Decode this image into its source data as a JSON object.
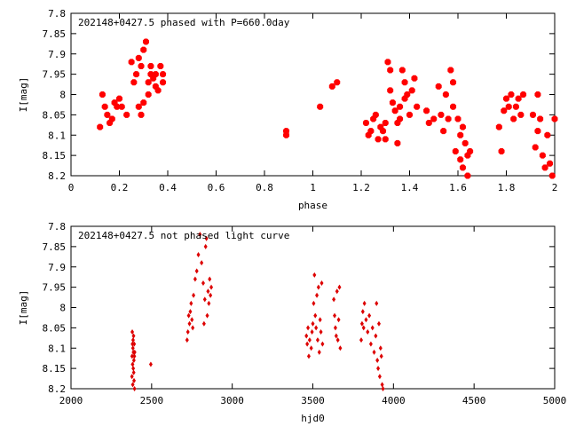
{
  "chart_data": [
    {
      "type": "scatter",
      "title": "202148+0427.5 phased with P=660.0day",
      "xlabel": "phase",
      "ylabel": "I[mag]",
      "xlim": [
        0,
        2
      ],
      "ylim": [
        8.2,
        7.8
      ],
      "y_inverted": true,
      "xticks": [
        "0",
        "0.2",
        "0.4",
        "0.6",
        "0.8",
        "1",
        "1.2",
        "1.4",
        "1.6",
        "1.8",
        "2"
      ],
      "yticks": [
        "7.8",
        "7.85",
        "7.9",
        "7.95",
        "8",
        "8.05",
        "8.1",
        "8.15",
        "8.2"
      ],
      "grid": false,
      "marker_color": "#ff0000",
      "points": [
        [
          0.12,
          8.08
        ],
        [
          0.13,
          8.0
        ],
        [
          0.14,
          8.03
        ],
        [
          0.15,
          8.05
        ],
        [
          0.16,
          8.07
        ],
        [
          0.17,
          8.06
        ],
        [
          0.18,
          8.02
        ],
        [
          0.19,
          8.03
        ],
        [
          0.2,
          8.01
        ],
        [
          0.21,
          8.03
        ],
        [
          0.23,
          8.05
        ],
        [
          0.25,
          7.92
        ],
        [
          0.26,
          7.97
        ],
        [
          0.27,
          7.95
        ],
        [
          0.28,
          7.91
        ],
        [
          0.29,
          7.93
        ],
        [
          0.28,
          8.03
        ],
        [
          0.29,
          8.05
        ],
        [
          0.3,
          7.89
        ],
        [
          0.3,
          8.02
        ],
        [
          0.31,
          7.87
        ],
        [
          0.32,
          8.0
        ],
        [
          0.32,
          7.97
        ],
        [
          0.33,
          7.95
        ],
        [
          0.33,
          7.93
        ],
        [
          0.34,
          7.96
        ],
        [
          0.35,
          7.98
        ],
        [
          0.35,
          7.95
        ],
        [
          0.36,
          7.99
        ],
        [
          0.37,
          7.93
        ],
        [
          0.38,
          7.97
        ],
        [
          0.38,
          7.95
        ],
        [
          0.89,
          8.1
        ],
        [
          0.89,
          8.09
        ],
        [
          1.03,
          8.03
        ],
        [
          1.08,
          7.98
        ],
        [
          1.1,
          7.97
        ],
        [
          1.22,
          8.07
        ],
        [
          1.23,
          8.1
        ],
        [
          1.24,
          8.09
        ],
        [
          1.25,
          8.06
        ],
        [
          1.26,
          8.05
        ],
        [
          1.27,
          8.11
        ],
        [
          1.28,
          8.08
        ],
        [
          1.29,
          8.09
        ],
        [
          1.3,
          8.07
        ],
        [
          1.3,
          8.11
        ],
        [
          1.31,
          7.92
        ],
        [
          1.32,
          7.99
        ],
        [
          1.32,
          7.94
        ],
        [
          1.33,
          8.02
        ],
        [
          1.34,
          8.04
        ],
        [
          1.35,
          8.07
        ],
        [
          1.35,
          8.12
        ],
        [
          1.36,
          8.06
        ],
        [
          1.36,
          8.03
        ],
        [
          1.37,
          7.94
        ],
        [
          1.38,
          7.97
        ],
        [
          1.38,
          8.01
        ],
        [
          1.39,
          8.0
        ],
        [
          1.4,
          8.05
        ],
        [
          1.41,
          7.99
        ],
        [
          1.42,
          7.96
        ],
        [
          1.43,
          8.03
        ],
        [
          1.47,
          8.04
        ],
        [
          1.48,
          8.07
        ],
        [
          1.5,
          8.06
        ],
        [
          1.52,
          7.98
        ],
        [
          1.53,
          8.05
        ],
        [
          1.54,
          8.09
        ],
        [
          1.55,
          8.0
        ],
        [
          1.56,
          8.06
        ],
        [
          1.57,
          7.94
        ],
        [
          1.58,
          7.97
        ],
        [
          1.58,
          8.03
        ],
        [
          1.59,
          8.14
        ],
        [
          1.6,
          8.06
        ],
        [
          1.61,
          8.1
        ],
        [
          1.61,
          8.16
        ],
        [
          1.62,
          8.18
        ],
        [
          1.62,
          8.08
        ],
        [
          1.63,
          8.12
        ],
        [
          1.64,
          8.15
        ],
        [
          1.64,
          8.2
        ],
        [
          1.65,
          8.14
        ],
        [
          1.77,
          8.08
        ],
        [
          1.78,
          8.14
        ],
        [
          1.79,
          8.04
        ],
        [
          1.8,
          8.01
        ],
        [
          1.81,
          8.03
        ],
        [
          1.82,
          8.0
        ],
        [
          1.83,
          8.06
        ],
        [
          1.84,
          8.03
        ],
        [
          1.85,
          8.01
        ],
        [
          1.86,
          8.05
        ],
        [
          1.87,
          8.0
        ],
        [
          1.91,
          8.05
        ],
        [
          1.92,
          8.13
        ],
        [
          1.93,
          8.09
        ],
        [
          1.93,
          8.0
        ],
        [
          1.94,
          8.06
        ],
        [
          1.95,
          8.15
        ],
        [
          1.96,
          8.18
        ],
        [
          1.97,
          8.1
        ],
        [
          1.98,
          8.17
        ],
        [
          1.99,
          8.2
        ],
        [
          2.0,
          8.06
        ]
      ]
    },
    {
      "type": "scatter",
      "title": "202148+0427.5 not phased light curve",
      "xlabel": "hjd0",
      "ylabel": "I[mag]",
      "xlim": [
        2000,
        5000
      ],
      "ylim": [
        8.2,
        7.8
      ],
      "y_inverted": true,
      "xticks": [
        "2000",
        "2500",
        "3000",
        "3500",
        "4000",
        "4500",
        "5000"
      ],
      "yticks": [
        "7.8",
        "7.85",
        "7.9",
        "7.95",
        "8",
        "8.05",
        "8.1",
        "8.15",
        "8.2"
      ],
      "grid": false,
      "marker_color": "#dd0000",
      "points": [
        [
          2378,
          8.17
        ],
        [
          2379,
          8.12
        ],
        [
          2380,
          8.06
        ],
        [
          2381,
          8.09
        ],
        [
          2382,
          8.14
        ],
        [
          2383,
          8.19
        ],
        [
          2384,
          8.1
        ],
        [
          2385,
          8.08
        ],
        [
          2386,
          8.15
        ],
        [
          2387,
          8.11
        ],
        [
          2388,
          8.07
        ],
        [
          2389,
          8.16
        ],
        [
          2390,
          8.13
        ],
        [
          2391,
          8.18
        ],
        [
          2392,
          8.09
        ],
        [
          2393,
          8.12
        ],
        [
          2394,
          8.2
        ],
        [
          2395,
          8.11
        ],
        [
          2495,
          8.14
        ],
        [
          2720,
          8.08
        ],
        [
          2725,
          8.06
        ],
        [
          2730,
          8.02
        ],
        [
          2735,
          8.04
        ],
        [
          2740,
          8.01
        ],
        [
          2745,
          7.99
        ],
        [
          2750,
          8.03
        ],
        [
          2755,
          8.05
        ],
        [
          2760,
          7.97
        ],
        [
          2770,
          7.93
        ],
        [
          2780,
          7.91
        ],
        [
          2790,
          7.87
        ],
        [
          2800,
          7.82
        ],
        [
          2810,
          7.89
        ],
        [
          2820,
          7.94
        ],
        [
          2825,
          8.04
        ],
        [
          2830,
          7.98
        ],
        [
          2835,
          7.85
        ],
        [
          2840,
          7.83
        ],
        [
          2845,
          8.02
        ],
        [
          2850,
          7.96
        ],
        [
          2855,
          7.99
        ],
        [
          2860,
          7.93
        ],
        [
          2865,
          7.97
        ],
        [
          2870,
          7.95
        ],
        [
          3460,
          8.07
        ],
        [
          3465,
          8.09
        ],
        [
          3470,
          8.05
        ],
        [
          3475,
          8.12
        ],
        [
          3480,
          8.08
        ],
        [
          3490,
          8.1
        ],
        [
          3495,
          8.06
        ],
        [
          3500,
          8.04
        ],
        [
          3505,
          7.99
        ],
        [
          3510,
          7.92
        ],
        [
          3515,
          8.02
        ],
        [
          3520,
          8.05
        ],
        [
          3525,
          7.97
        ],
        [
          3530,
          8.08
        ],
        [
          3535,
          7.95
        ],
        [
          3540,
          8.11
        ],
        [
          3545,
          8.03
        ],
        [
          3550,
          8.06
        ],
        [
          3555,
          7.94
        ],
        [
          3560,
          8.09
        ],
        [
          3630,
          7.98
        ],
        [
          3635,
          8.02
        ],
        [
          3640,
          8.05
        ],
        [
          3645,
          8.07
        ],
        [
          3650,
          7.96
        ],
        [
          3655,
          8.08
        ],
        [
          3660,
          8.03
        ],
        [
          3665,
          7.95
        ],
        [
          3670,
          8.1
        ],
        [
          3800,
          8.08
        ],
        [
          3805,
          8.04
        ],
        [
          3810,
          8.01
        ],
        [
          3815,
          8.05
        ],
        [
          3820,
          7.99
        ],
        [
          3830,
          8.03
        ],
        [
          3840,
          8.06
        ],
        [
          3850,
          8.02
        ],
        [
          3860,
          8.09
        ],
        [
          3870,
          8.05
        ],
        [
          3880,
          8.11
        ],
        [
          3890,
          8.07
        ],
        [
          3895,
          7.99
        ],
        [
          3900,
          8.13
        ],
        [
          3905,
          8.15
        ],
        [
          3910,
          8.04
        ],
        [
          3915,
          8.17
        ],
        [
          3920,
          8.1
        ],
        [
          3925,
          8.12
        ],
        [
          3930,
          8.19
        ],
        [
          3935,
          8.2
        ]
      ]
    }
  ]
}
